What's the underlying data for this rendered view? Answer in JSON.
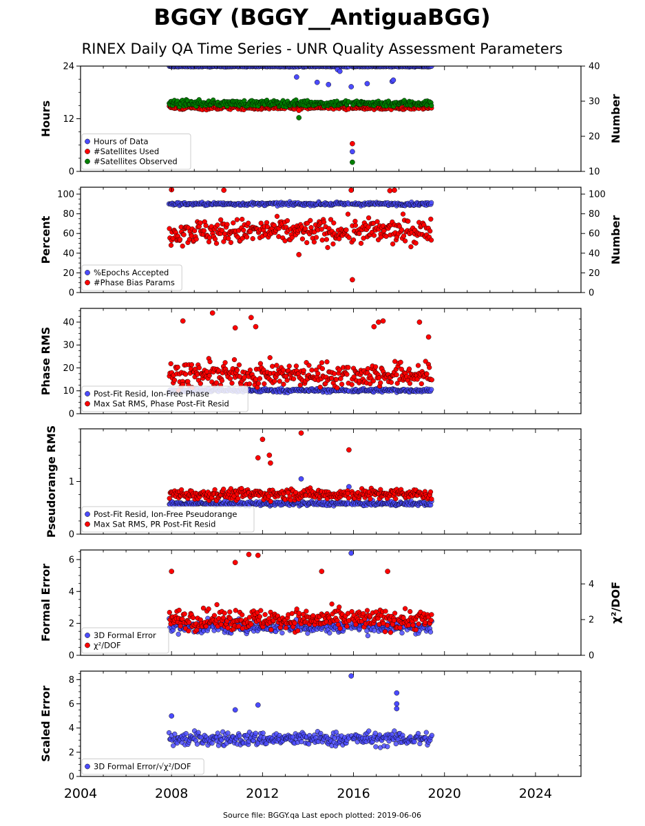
{
  "title": "BGGY (BGGY__AntiguaBGG)",
  "subtitle": "RINEX Daily QA Time Series - UNR Quality Assessment Parameters",
  "footer": "Source file: BGGY.qa Last epoch plotted: 2019-06-06",
  "colors": {
    "blue": "#4b4bff",
    "red": "#ff0000",
    "green": "#008000",
    "edge": "#000000"
  },
  "chart_data": {
    "type": "scatter",
    "xlim": [
      2004,
      2026
    ],
    "x_ticks": [
      "2004",
      "2008",
      "2012",
      "2016",
      "2020",
      "2024"
    ],
    "date_range": [
      2007.9,
      2019.43
    ],
    "panels": [
      {
        "id": "hours",
        "ylabel": "Hours",
        "ylim": [
          0,
          24
        ],
        "y_ticks": [
          "0",
          "12",
          "24"
        ],
        "ylabel_right": "Number",
        "ylim_right": [
          10,
          40
        ],
        "y_ticks_right": [
          "10",
          "20",
          "30",
          "40"
        ],
        "series": [
          {
            "name": "Hours of Data",
            "color": "blue",
            "axis": "left",
            "base": 23.9,
            "noise": 0.1,
            "outliers": [
              [
                2013.5,
                21.5
              ],
              [
                2014.4,
                20.3
              ],
              [
                2014.9,
                19.8
              ],
              [
                2015.3,
                23.2
              ],
              [
                2015.4,
                22.8
              ],
              [
                2015.9,
                19.3
              ],
              [
                2015.95,
                4.5
              ],
              [
                2016.6,
                20.0
              ],
              [
                2017.7,
                20.5
              ],
              [
                2017.75,
                20.8
              ]
            ]
          },
          {
            "name": "#Satellites Used",
            "color": "red",
            "axis": "right",
            "base": 28.2,
            "noise": 0.6,
            "outliers": [
              [
                2013.6,
                27.4
              ],
              [
                2015.95,
                17.9
              ]
            ]
          },
          {
            "name": "#Satellites Observed",
            "color": "green",
            "axis": "right",
            "base": 29.4,
            "noise": 0.8,
            "outliers": [
              [
                2013.6,
                25.3
              ],
              [
                2015.95,
                12.6
              ]
            ]
          }
        ]
      },
      {
        "id": "percent",
        "ylabel": "Percent",
        "ylim": [
          0,
          107
        ],
        "y_ticks": [
          "0",
          "20",
          "40",
          "60",
          "80",
          "100"
        ],
        "ylabel_right": "Number",
        "ylim_right": [
          0,
          107
        ],
        "y_ticks_right": [
          "0",
          "20",
          "40",
          "60",
          "80",
          "100"
        ],
        "series": [
          {
            "name": "%Epochs Accepted",
            "color": "blue",
            "axis": "left",
            "base": 90.0,
            "noise": 1.5,
            "outliers": []
          },
          {
            "name": "#Phase Bias Params",
            "color": "red",
            "axis": "right",
            "base": 62.0,
            "noise": 12.0,
            "outliers": [
              [
                2008.0,
                104.5
              ],
              [
                2010.3,
                104.0
              ],
              [
                2013.6,
                38.5
              ],
              [
                2015.9,
                104.0
              ],
              [
                2015.95,
                13.0
              ],
              [
                2017.6,
                103.5
              ],
              [
                2017.8,
                104.0
              ]
            ]
          }
        ]
      },
      {
        "id": "phase",
        "ylabel": "Phase RMS",
        "ylim": [
          0,
          46
        ],
        "y_ticks": [
          "0",
          "10",
          "20",
          "30",
          "40"
        ],
        "series": [
          {
            "name": "Post-Fit Resid, Ion-Free Phase",
            "color": "blue",
            "axis": "left",
            "base": 10.2,
            "noise": 0.8,
            "outliers": []
          },
          {
            "name": "Max Sat RMS, Phase Post-Fit Resid",
            "color": "red",
            "axis": "left",
            "base": 17.0,
            "noise": 5.0,
            "outliers": [
              [
                2008.5,
                40.5
              ],
              [
                2009.8,
                44.0
              ],
              [
                2010.8,
                37.5
              ],
              [
                2011.5,
                42.0
              ],
              [
                2011.7,
                38.0
              ],
              [
                2016.9,
                38.0
              ],
              [
                2017.1,
                40.0
              ],
              [
                2017.3,
                40.5
              ],
              [
                2018.9,
                40.0
              ],
              [
                2019.3,
                33.5
              ]
            ]
          }
        ]
      },
      {
        "id": "pseudorange",
        "ylabel": "Pseudorange RMS",
        "ylim": [
          0,
          2.0
        ],
        "y_ticks": [
          "0",
          "1"
        ],
        "series": [
          {
            "name": "Post-Fit Resid, Ion-Free Pseudorange",
            "color": "blue",
            "axis": "left",
            "base": 0.58,
            "noise": 0.04,
            "outliers": [
              [
                2013.7,
                1.05
              ],
              [
                2015.8,
                0.9
              ]
            ]
          },
          {
            "name": "Max Sat RMS, PR Post-Fit Resid",
            "color": "red",
            "axis": "left",
            "base": 0.76,
            "noise": 0.1,
            "outliers": [
              [
                2011.8,
                1.45
              ],
              [
                2012.0,
                1.8
              ],
              [
                2012.3,
                1.5
              ],
              [
                2012.35,
                1.35
              ],
              [
                2013.7,
                1.92
              ],
              [
                2015.8,
                1.6
              ]
            ]
          }
        ]
      },
      {
        "id": "formal",
        "ylabel": "Formal Error",
        "ylim": [
          0,
          6.6
        ],
        "y_ticks": [
          "0",
          "2",
          "4",
          "6"
        ],
        "ylabel_right": "χ²/DOF",
        "ylim_right": [
          0,
          5.9
        ],
        "y_ticks_right": [
          "0",
          "2",
          "4"
        ],
        "series": [
          {
            "name": "3D Formal Error",
            "color": "blue",
            "axis": "left",
            "base": 1.8,
            "noise": 0.4,
            "outliers": [
              [
                2015.9,
                6.4
              ]
            ]
          },
          {
            "name": "χ²/DOF",
            "color": "red",
            "axis": "right",
            "base": 2.0,
            "noise": 0.55,
            "outliers": [
              [
                2008.0,
                4.7
              ],
              [
                2010.8,
                5.2
              ],
              [
                2011.4,
                5.65
              ],
              [
                2011.8,
                5.6
              ],
              [
                2014.6,
                4.7
              ],
              [
                2017.5,
                4.7
              ]
            ]
          }
        ]
      },
      {
        "id": "scaled",
        "ylabel": "Scaled Error",
        "ylim": [
          0,
          8.7
        ],
        "y_ticks": [
          "0",
          "2",
          "4",
          "6",
          "8"
        ],
        "series": [
          {
            "name": "3D Formal Error/√χ²/DOF",
            "color": "blue",
            "axis": "left",
            "base": 3.1,
            "noise": 0.55,
            "outliers": [
              [
                2008.0,
                5.0
              ],
              [
                2010.8,
                5.5
              ],
              [
                2011.8,
                5.9
              ],
              [
                2015.9,
                8.3
              ],
              [
                2017.9,
                6.9
              ],
              [
                2017.9,
                6.0
              ],
              [
                2017.9,
                5.6
              ]
            ]
          }
        ]
      }
    ]
  }
}
